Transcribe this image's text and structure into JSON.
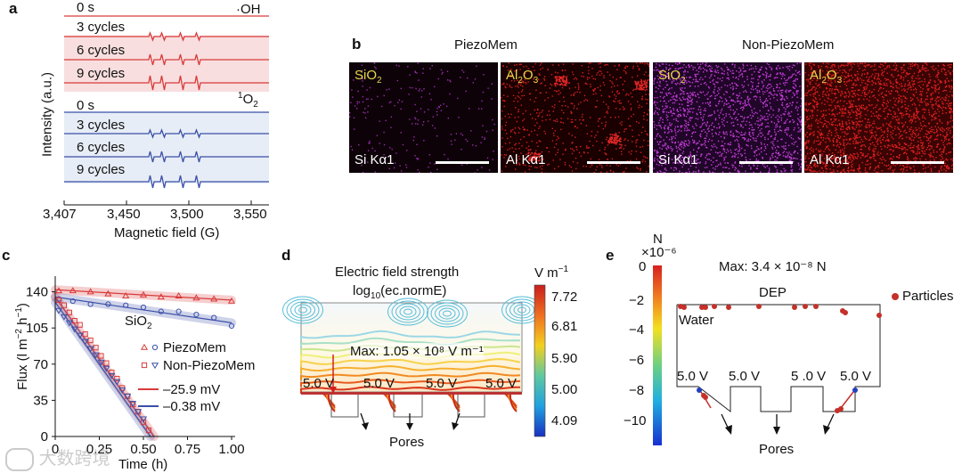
{
  "panel_a": {
    "label": "a",
    "ylabel": "Intensity (a.u.)",
    "xlabel": "Magnetic field (G)",
    "ticks": [
      "3,407",
      "3,450",
      "3,500",
      "3,550"
    ],
    "species_oh": "·OH",
    "species_o2": "1O2",
    "traces_oh": [
      "0 s",
      "3 cycles",
      "6 cycles",
      "9 cycles"
    ],
    "traces_o2": [
      "0 s",
      "3 cycles",
      "6 cycles",
      "9 cycles"
    ],
    "colors": {
      "red": "#d93a3a",
      "blue": "#3a4fa8"
    }
  },
  "panel_b": {
    "label": "b",
    "group1": "PiezoMem",
    "group2": "Non-PiezoMem",
    "maps": [
      {
        "top": "SiO2",
        "bottom": "Si Kα1",
        "color": "#9a2bb0"
      },
      {
        "top": "Al2O3",
        "bottom": "Al Kα1",
        "color": "#d42020"
      },
      {
        "top": "SiO2",
        "bottom": "Si Kα1",
        "color": "#c23cd8"
      },
      {
        "top": "Al2O3",
        "bottom": "Al Kα1",
        "color": "#e02020"
      }
    ]
  },
  "panel_c": {
    "label": "c",
    "ylabel": "Flux (l m−2 h−1)",
    "xlabel": "Time (h)",
    "material": "SiO2",
    "legend": [
      "PiezoMem",
      "Non-PiezoMem",
      "–25.9 mV",
      "–0.38 mV"
    ],
    "chart_data": {
      "type": "scatter",
      "xlim": [
        0,
        1.0
      ],
      "ylim": [
        0,
        150
      ],
      "x_ticks": [
        "0",
        "0.25",
        "0.50",
        "0.75",
        "1.00"
      ],
      "y_ticks": [
        "0",
        "35",
        "70",
        "105",
        "140"
      ],
      "series": [
        {
          "name": "PiezoMem –25.9 mV",
          "color": "#d93a3a",
          "marker": "triangle-up",
          "x": [
            0.02,
            0.1,
            0.2,
            0.3,
            0.4,
            0.5,
            0.6,
            0.7,
            0.8,
            0.9,
            1.0
          ],
          "y": [
            141,
            141,
            140,
            138,
            136,
            137,
            135,
            136,
            134,
            133,
            131
          ]
        },
        {
          "name": "PiezoMem –0.38 mV",
          "color": "#3a4fa8",
          "marker": "circle",
          "x": [
            0.02,
            0.1,
            0.2,
            0.3,
            0.4,
            0.5,
            0.6,
            0.7,
            0.8,
            0.9,
            1.0
          ],
          "y": [
            133,
            131,
            128,
            128,
            127,
            125,
            121,
            121,
            118,
            115,
            107
          ]
        },
        {
          "name": "Non-PiezoMem –25.9 mV",
          "color": "#d93a3a",
          "marker": "square",
          "x": [
            0.02,
            0.05,
            0.08,
            0.11,
            0.14,
            0.17,
            0.2,
            0.23,
            0.26,
            0.29,
            0.32,
            0.35,
            0.38,
            0.41,
            0.44,
            0.47,
            0.5,
            0.53
          ],
          "y": [
            132,
            127,
            120,
            112,
            108,
            99,
            93,
            86,
            78,
            71,
            62,
            56,
            47,
            39,
            31,
            24,
            14,
            6
          ]
        },
        {
          "name": "Non-PiezoMem –0.38 mV",
          "color": "#3a4fa8",
          "marker": "triangle-down",
          "x": [
            0.02,
            0.05,
            0.08,
            0.11,
            0.14,
            0.17,
            0.2,
            0.23,
            0.26,
            0.29,
            0.32,
            0.35,
            0.38,
            0.41,
            0.44,
            0.47,
            0.5
          ],
          "y": [
            122,
            116,
            110,
            104,
            98,
            92,
            85,
            79,
            72,
            66,
            59,
            53,
            45,
            39,
            32,
            24,
            17
          ]
        }
      ],
      "fits": [
        {
          "color": "#d93a3a",
          "x": [
            0,
            1.0
          ],
          "y": [
            142,
            132
          ]
        },
        {
          "color": "#3a4fa8",
          "x": [
            0,
            1.0
          ],
          "y": [
            135,
            110
          ]
        },
        {
          "color": "#d93a3a",
          "x": [
            0,
            0.56
          ],
          "y": [
            135,
            0
          ]
        },
        {
          "color": "#3a4fa8",
          "x": [
            0,
            0.54
          ],
          "y": [
            130,
            0
          ]
        }
      ]
    }
  },
  "panel_d": {
    "label": "d",
    "title": "Electric field strength",
    "subtitle": "log10(ec.normE)",
    "unit": "V m−1",
    "max_text": "Max: 1.05 × 10⁸ V m⁻¹",
    "electrode": "5.0 V",
    "pores": "Pores",
    "scale": [
      "7.72",
      "6.81",
      "5.90",
      "5.00",
      "4.09"
    ]
  },
  "panel_e": {
    "label": "e",
    "unit": "N",
    "exponent": "×10⁻⁶",
    "max_text": "Max: 3.4 × 10⁻⁸ N",
    "dep": "DEP",
    "water": "Water",
    "particles": "Particles",
    "electrodes": [
      "5.0 V",
      "5.0 V",
      "5 .0 V",
      "5.0 V"
    ],
    "pores": "Pores",
    "scale": [
      "0",
      "−2",
      "−4",
      "−6",
      "−8",
      "−10"
    ]
  },
  "watermark": "大数跨境"
}
